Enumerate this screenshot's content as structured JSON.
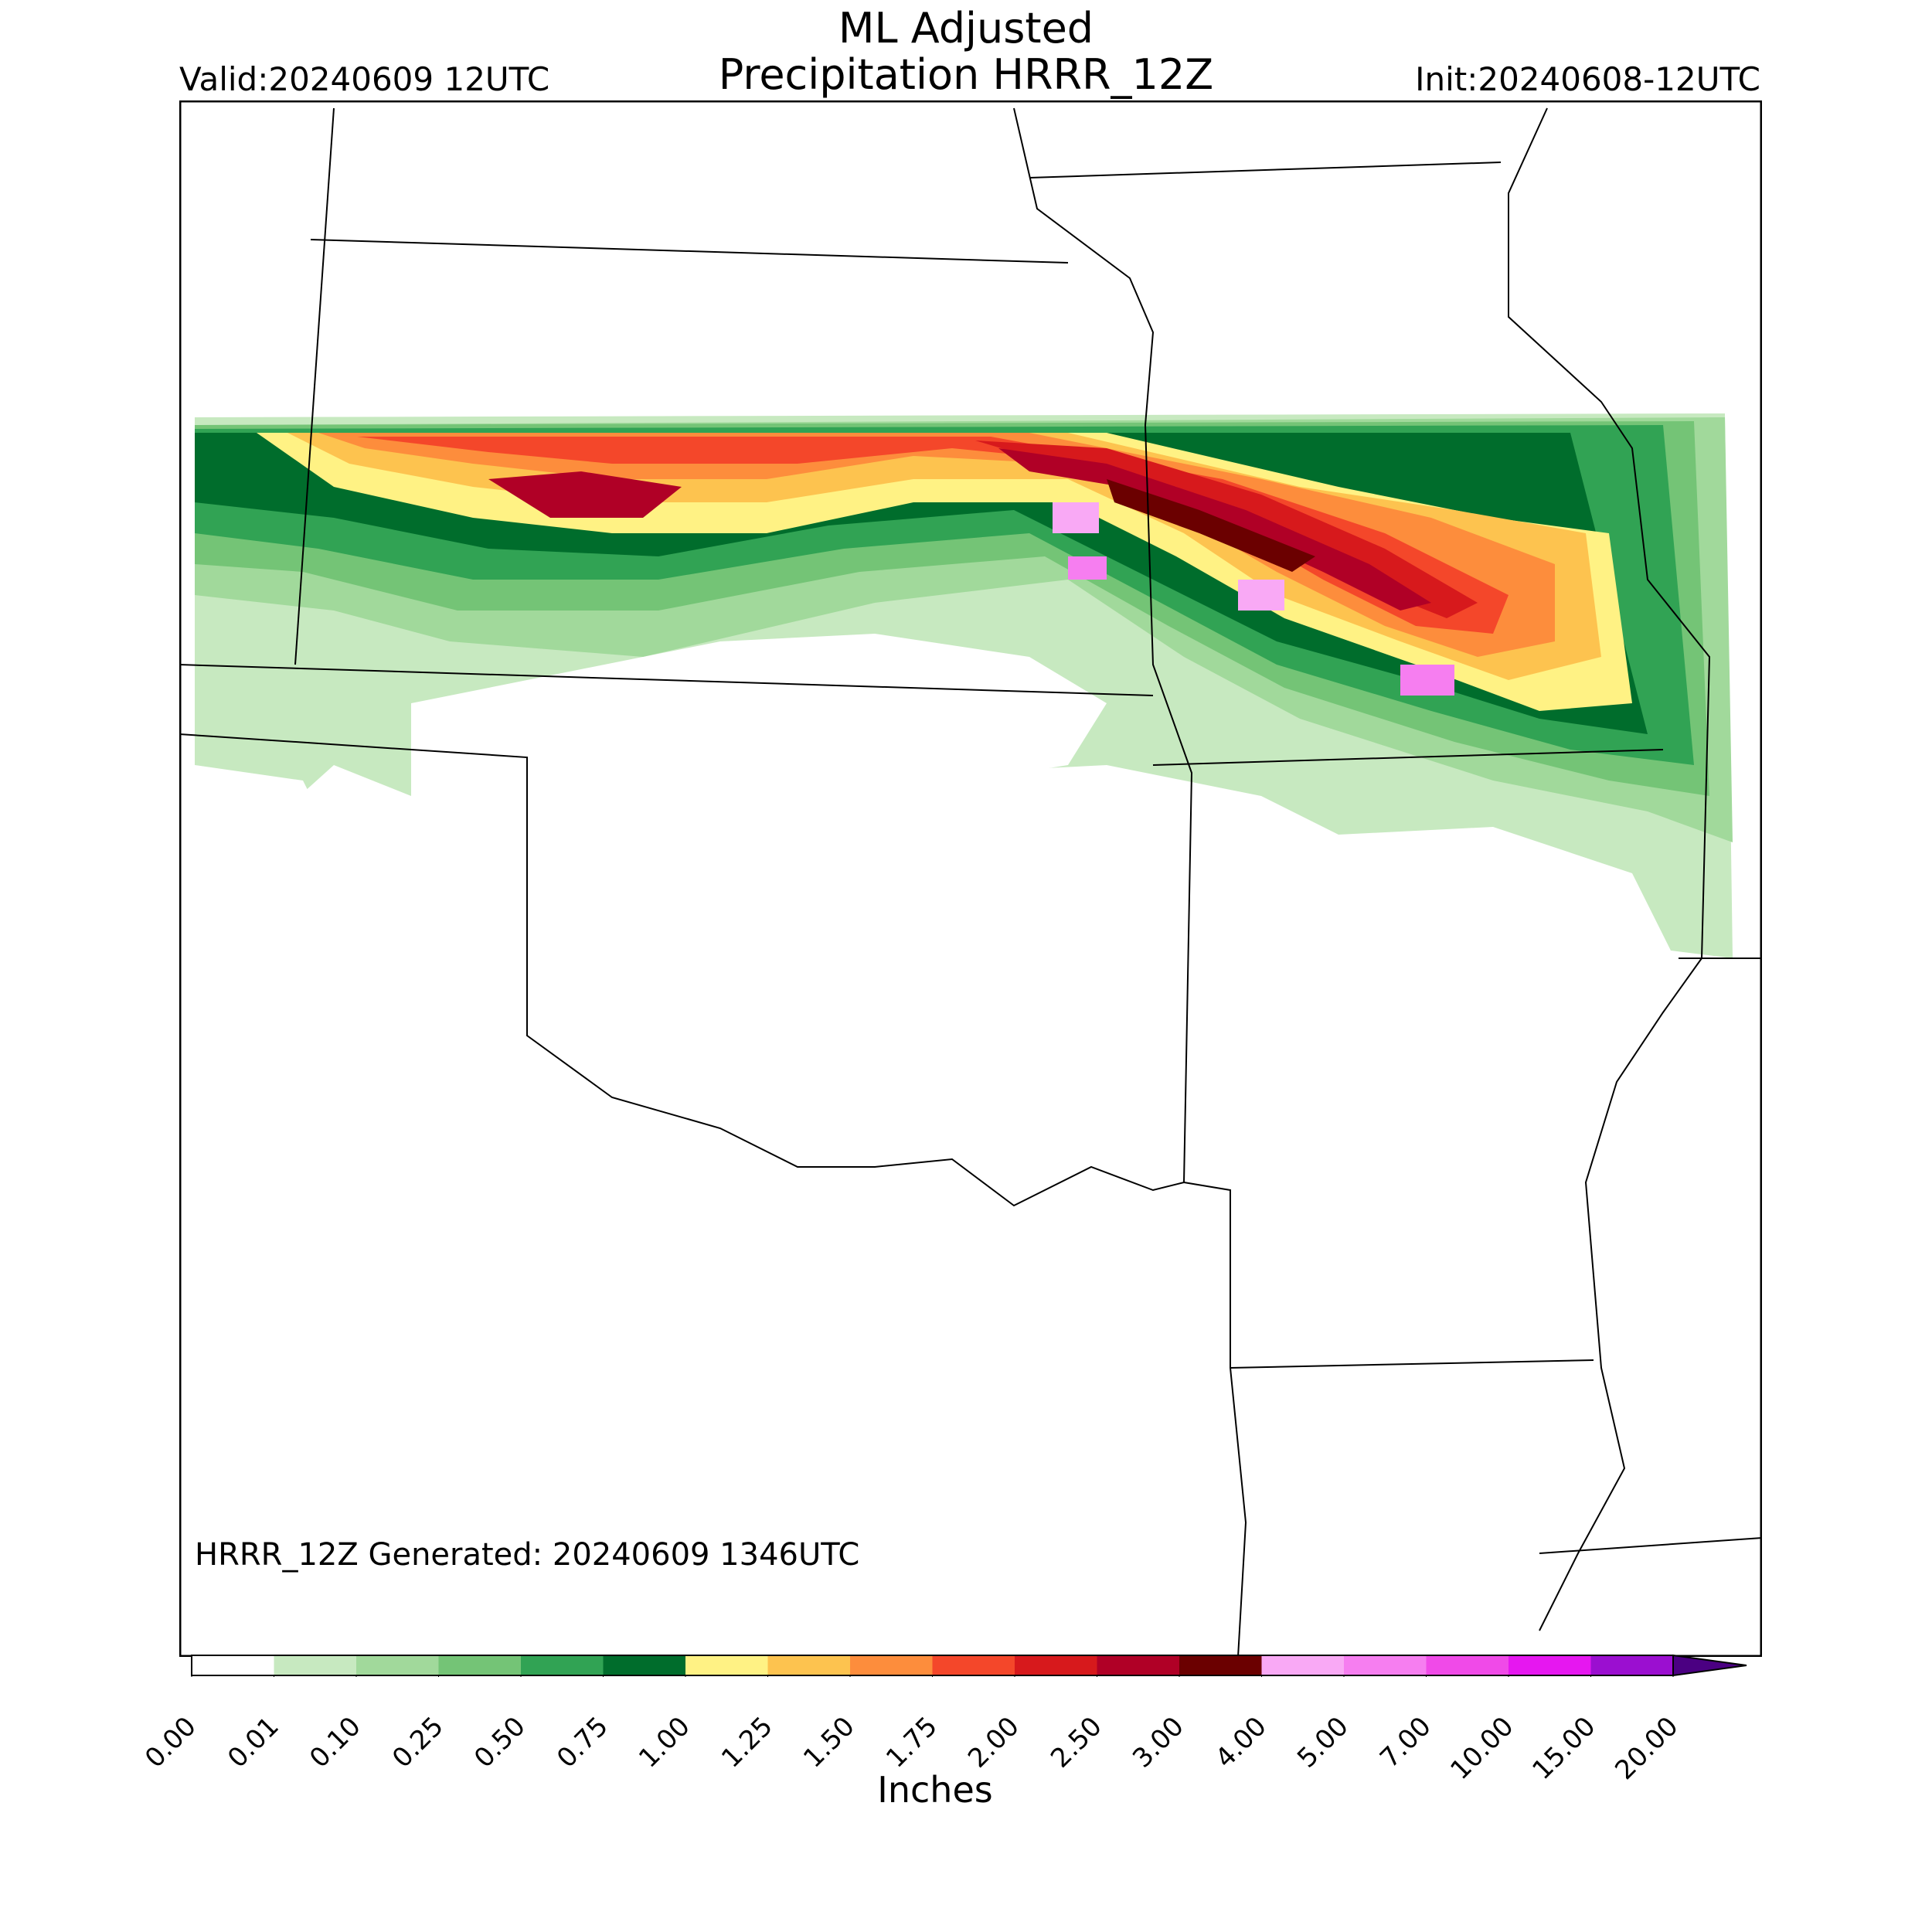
{
  "header": {
    "title_line1": "ML Adjusted",
    "title_line2": "Precipitation HRRR_12Z",
    "valid": "Valid:20240609 12UTC",
    "init": "Init:20240608-12UTC"
  },
  "map": {
    "footnote": "HRRR_12Z Generated: 20240609 1346UTC",
    "precip_band_description_colors": {
      "light_green": "#c7e9c0",
      "green": "#a1d99b",
      "mid_green": "#74c476",
      "dark_green": "#31a354",
      "darkest_green": "#006d2c",
      "yellow": "#fff284",
      "light_orange": "#fdc34f",
      "orange": "#fd8d3c",
      "red_orange": "#f4472a",
      "red": "#d7191c",
      "crimson": "#b00026",
      "dark_red": "#6b0000",
      "pink": "#f9a9f5"
    }
  },
  "colorbar": {
    "label": "Inches",
    "ticks": [
      "0.00",
      "0.01",
      "0.10",
      "0.25",
      "0.50",
      "0.75",
      "1.00",
      "1.25",
      "1.50",
      "1.75",
      "2.00",
      "2.50",
      "3.00",
      "4.00",
      "5.00",
      "7.00",
      "10.00",
      "15.00",
      "20.00"
    ],
    "colors": [
      "#ffffff",
      "#c7e9c0",
      "#a1d99b",
      "#74c476",
      "#31a354",
      "#006d2c",
      "#fff284",
      "#fdc34f",
      "#fd8d3c",
      "#f4472a",
      "#d7191c",
      "#b00026",
      "#6b0000",
      "#f9a9f5",
      "#f67ef0",
      "#f04ae8",
      "#e617f0",
      "#9b0fd0"
    ],
    "extend_color": "#4b0082"
  }
}
